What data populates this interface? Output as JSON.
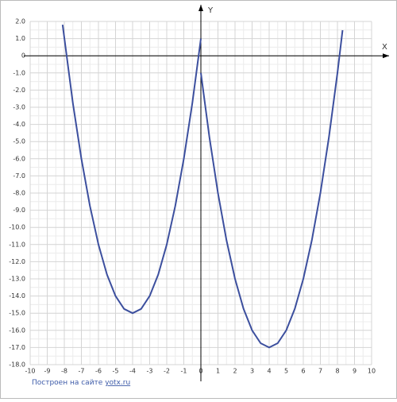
{
  "chart_data": {
    "type": "line",
    "xlabel": "X",
    "ylabel": "Y",
    "footer": {
      "text": "Построен на сайте",
      "link": "yotx.ru"
    },
    "xlim": [
      -10,
      10
    ],
    "xticks": [
      -10,
      -9,
      -8,
      -7,
      -6,
      -5,
      -4,
      -3,
      -2,
      -1,
      0,
      1,
      2,
      3,
      4,
      5,
      6,
      7,
      8,
      9,
      10
    ],
    "ylim": [
      -18,
      2
    ],
    "yticks": [
      {
        "value": 2,
        "label": "2.0"
      },
      {
        "value": 1,
        "label": "1.0"
      },
      0,
      {
        "value": -1,
        "label": "-1.0"
      },
      {
        "value": -2,
        "label": "-2.0"
      },
      {
        "value": -3,
        "label": "-3.0"
      },
      {
        "value": -4,
        "label": "-4.0"
      },
      {
        "value": -5,
        "label": "-5.0"
      },
      {
        "value": -6,
        "label": "-6.0"
      },
      {
        "value": -7,
        "label": "-7.0"
      },
      {
        "value": -8,
        "label": "-8.0"
      },
      {
        "value": -9,
        "label": "-9.0"
      },
      {
        "value": -10,
        "label": "-10.0"
      },
      {
        "value": -11,
        "label": "-11.0"
      },
      {
        "value": -12,
        "label": "-12.0"
      },
      {
        "value": -13,
        "label": "-13.0"
      },
      {
        "value": -14,
        "label": "-14.0"
      },
      {
        "value": -15,
        "label": "-15.0"
      },
      {
        "value": -16,
        "label": "-16.0"
      },
      {
        "value": -17,
        "label": "-17.0"
      },
      {
        "value": -18,
        "label": "-18.0"
      }
    ],
    "grid": true,
    "series": [
      {
        "color": "#3c4f9e",
        "x": [
          -8.1,
          -7.5,
          -7,
          -6.5,
          -6,
          -5.5,
          -5,
          -4.5,
          -4,
          -3.5,
          -3,
          -2.5,
          -2,
          -1.5,
          -1,
          -0.5,
          0
        ],
        "values": [
          1.81,
          -2.75,
          -6,
          -8.75,
          -11,
          -12.75,
          -14,
          -14.75,
          -15,
          -14.75,
          -14,
          -12.75,
          -11,
          -8.75,
          -6,
          -2.75,
          1
        ]
      },
      {
        "color": "#3c4f9e",
        "x": [
          0,
          0.5,
          1,
          1.5,
          2,
          2.5,
          3,
          3.5,
          4,
          4.5,
          5,
          5.5,
          6,
          6.5,
          7,
          7.5,
          8,
          8.3
        ],
        "values": [
          -1,
          -4.75,
          -8,
          -10.75,
          -13,
          -14.75,
          -16,
          -16.75,
          -17,
          -16.75,
          -16,
          -14.75,
          -13,
          -10.75,
          -8,
          -4.75,
          -1,
          1.49
        ]
      }
    ]
  }
}
